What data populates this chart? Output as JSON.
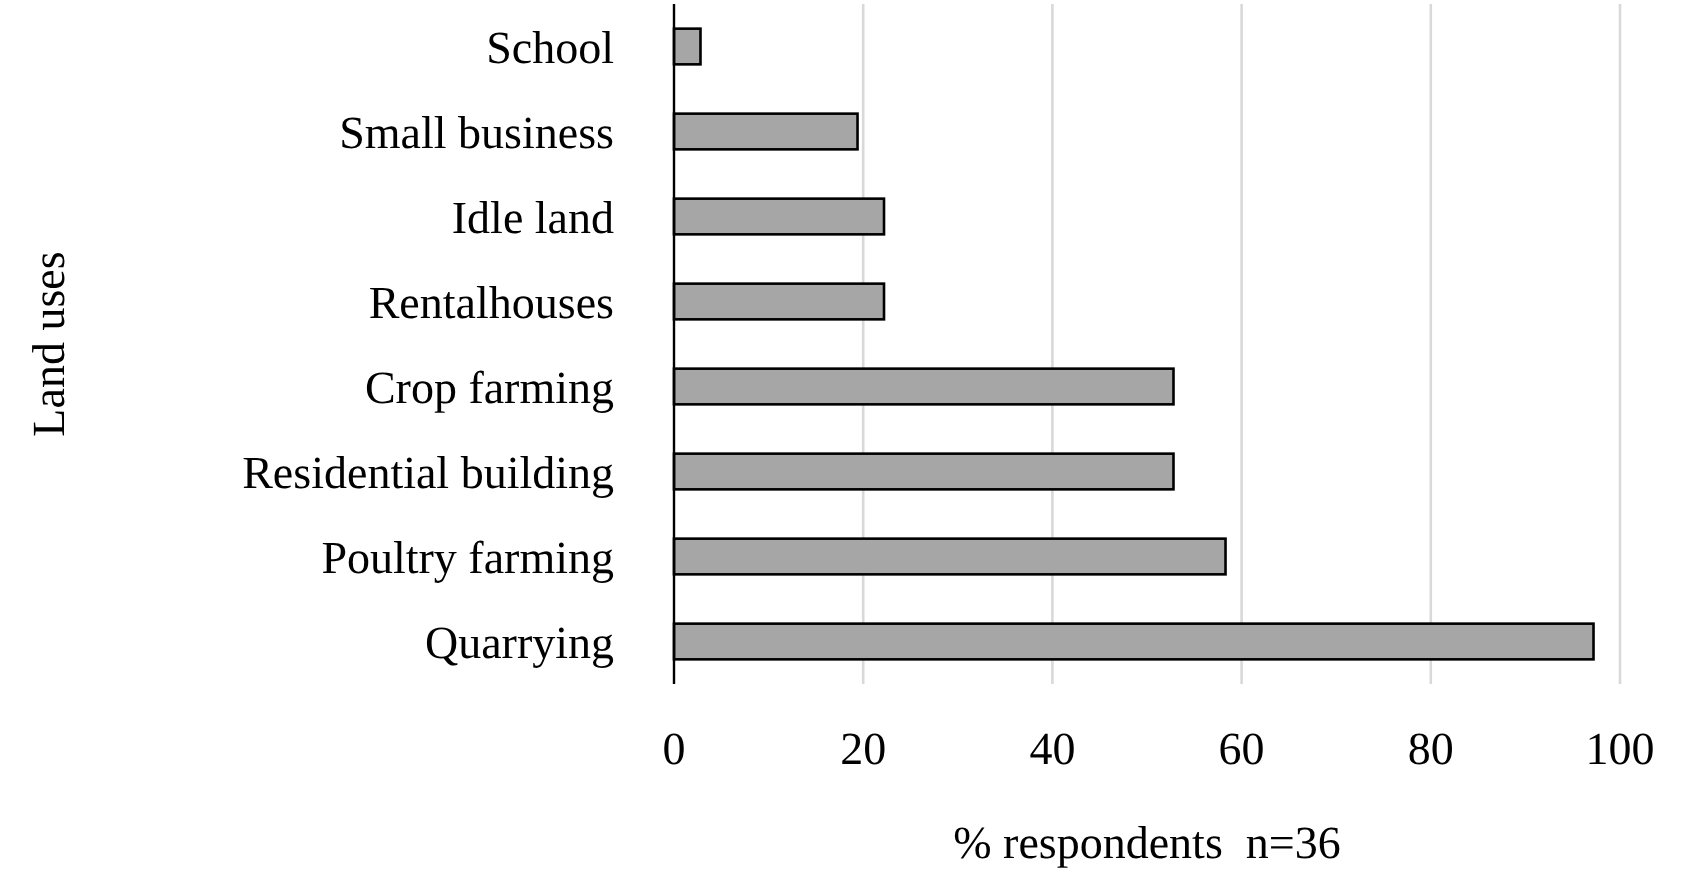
{
  "chart_data": {
    "type": "bar",
    "orientation": "horizontal",
    "xlabel": "% respondents  n=36",
    "ylabel": "Land uses",
    "categories": [
      "School",
      "Small business",
      "Idle land",
      "Rentalhouses",
      "Crop farming",
      "Residential building",
      "Poultry farming",
      "Quarrying"
    ],
    "values": [
      2.8,
      19.4,
      22.2,
      22.2,
      52.8,
      52.8,
      58.3,
      97.2
    ],
    "color": "#a6a6a6",
    "xlim": [
      0,
      100
    ],
    "xticks": [
      0,
      20,
      40,
      60,
      80,
      100
    ],
    "grid": "x"
  }
}
